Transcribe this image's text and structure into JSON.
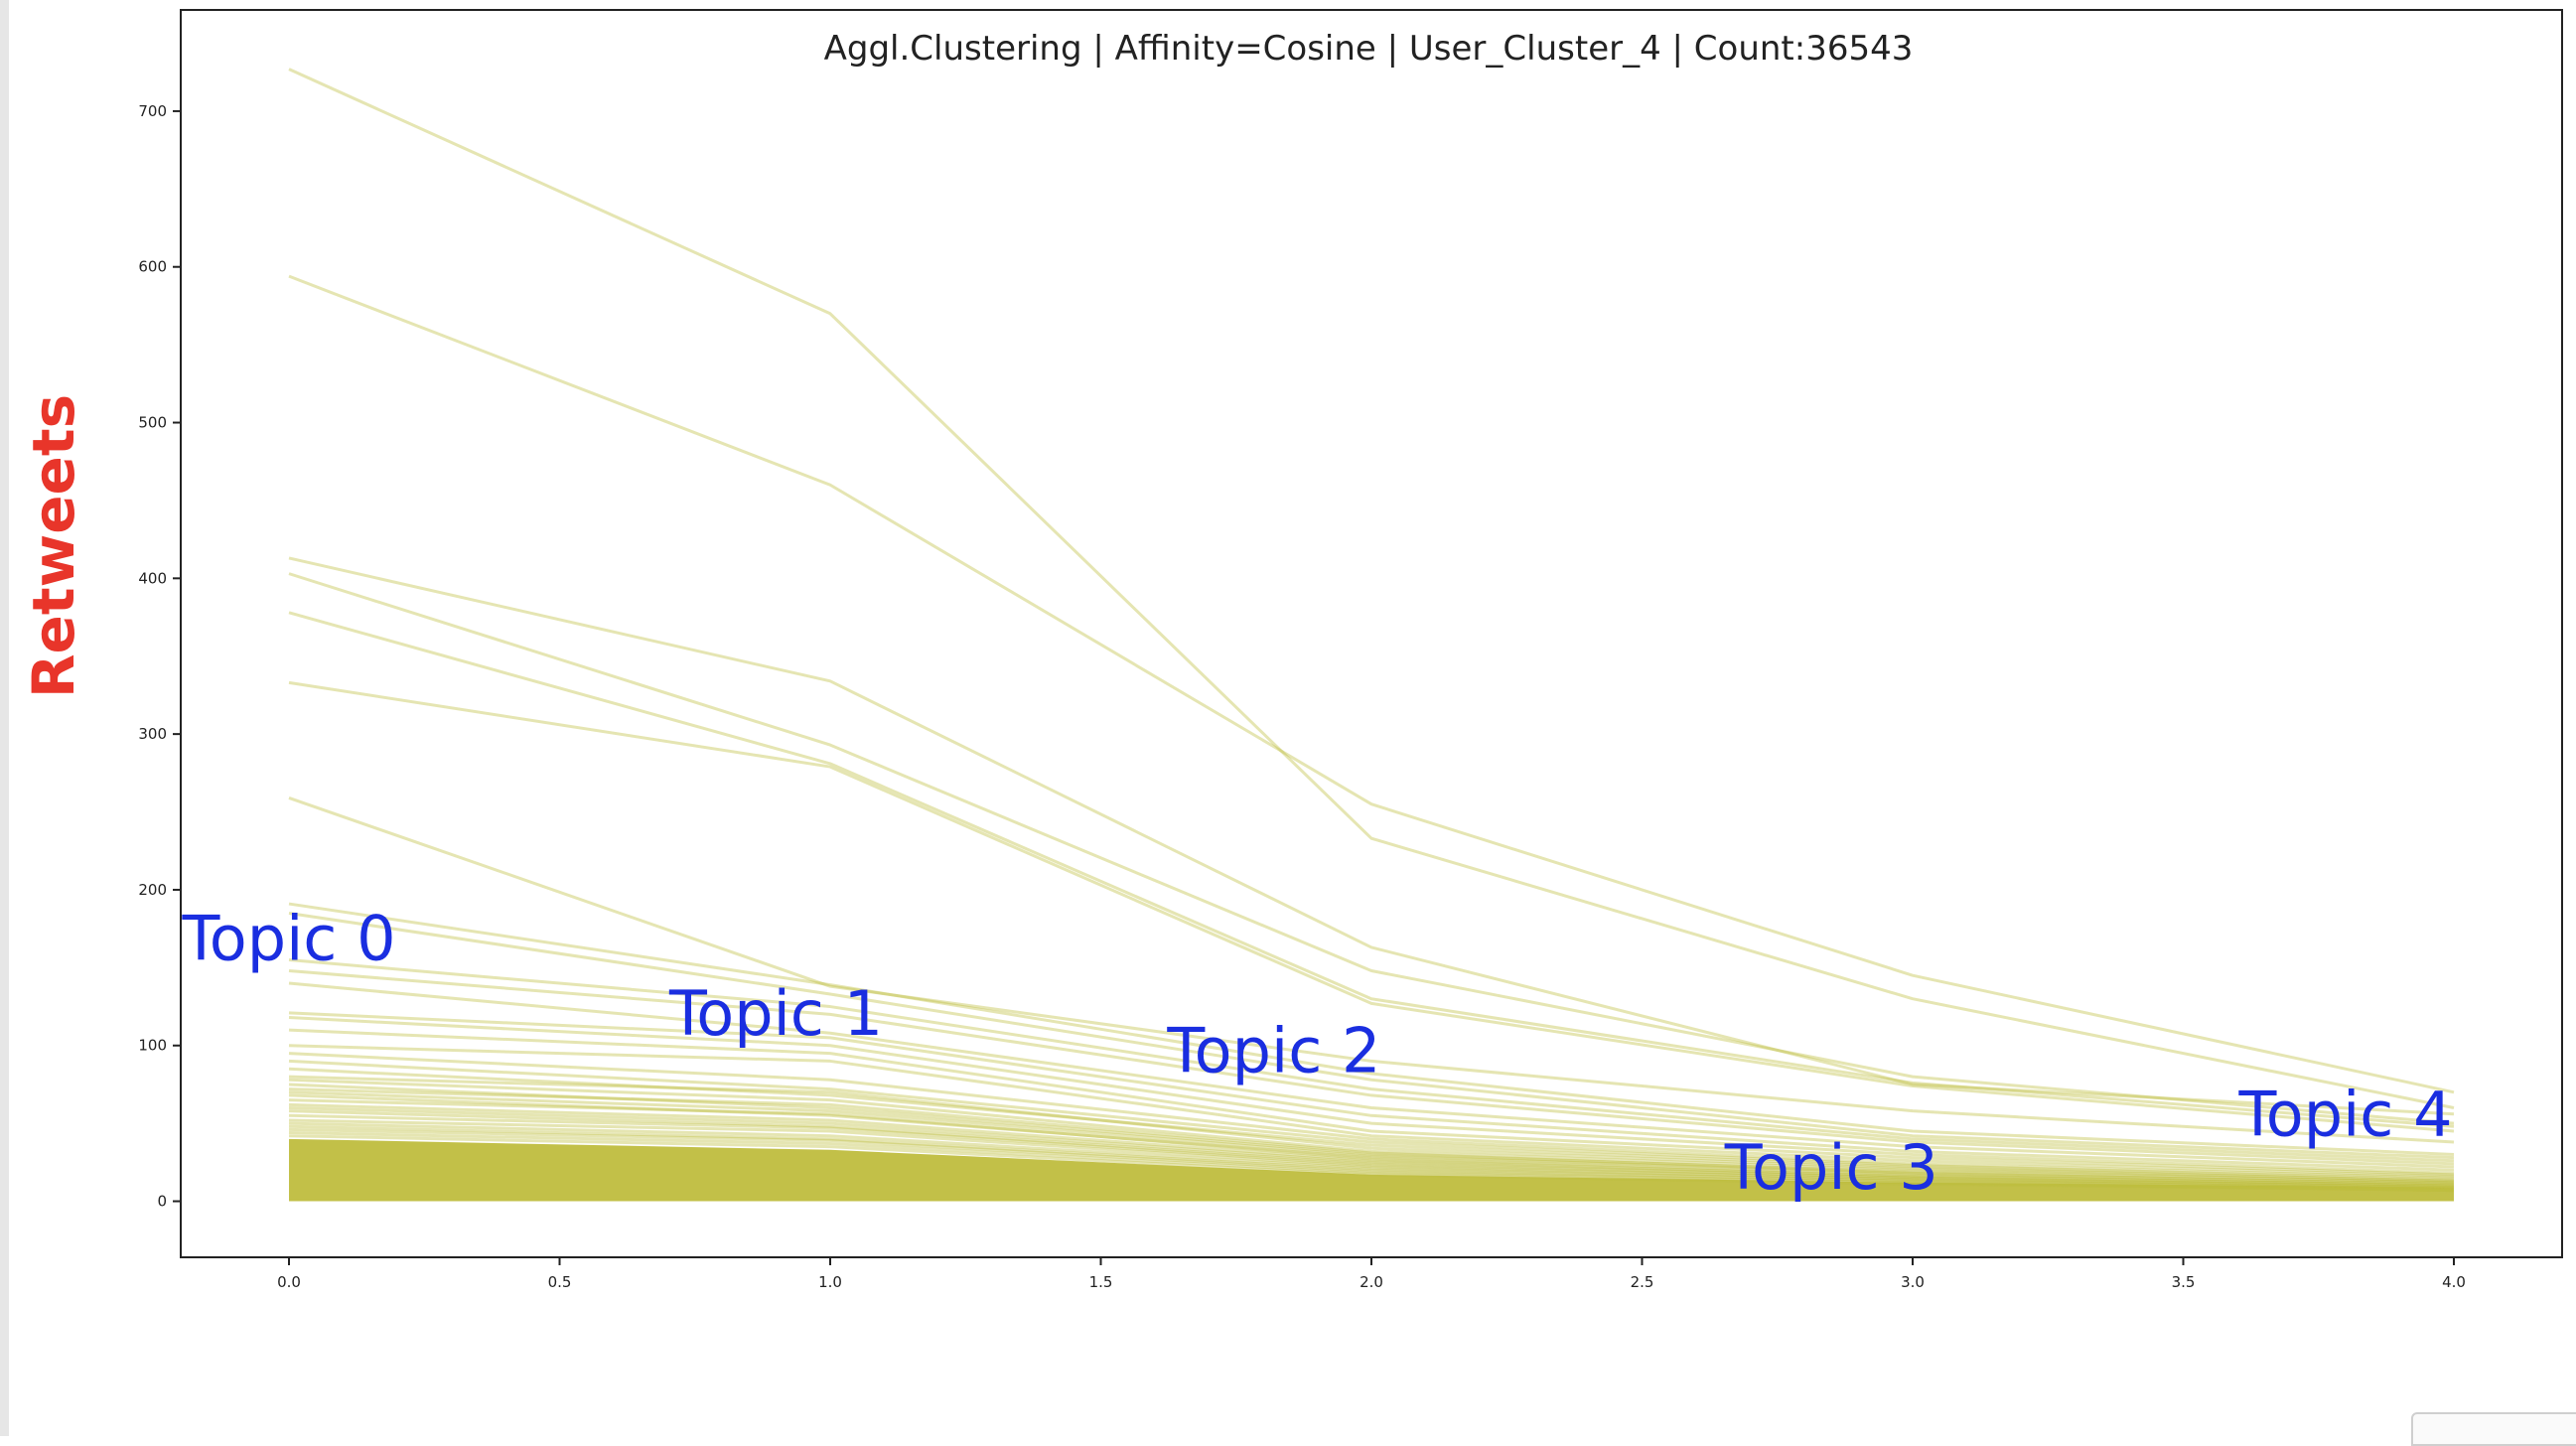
{
  "chart_data": {
    "type": "line",
    "title": "Aggl.Clustering | Affinity=Cosine | User_Cluster_4 | Count:36543",
    "ylabel": "Retweets",
    "xlabel": "",
    "xlim": [
      -0.2,
      4.2
    ],
    "ylim": [
      -36,
      765
    ],
    "x": [
      0,
      1,
      2,
      3,
      4
    ],
    "x_ticks": [
      "0.0",
      "0.5",
      "1.0",
      "1.5",
      "2.0",
      "2.5",
      "3.0",
      "3.5",
      "4.0"
    ],
    "y_ticks": [
      "0",
      "100",
      "200",
      "300",
      "400",
      "500",
      "600",
      "700"
    ],
    "grid": false,
    "legend": "none",
    "line_color": "#bfbd3e",
    "title_color": "#222222",
    "ylabel_color": "#e8352a",
    "annotation_color": "#1a2ee0",
    "annotations": [
      {
        "text": "Topic 0",
        "x": 0.0,
        "y": 155
      },
      {
        "text": "Topic 1",
        "x": 0.9,
        "y": 107
      },
      {
        "text": "Topic 2",
        "x": 1.82,
        "y": 83
      },
      {
        "text": "Topic 3",
        "x": 2.85,
        "y": 8
      },
      {
        "text": "Topic 4",
        "x": 3.8,
        "y": 42
      }
    ],
    "series": [
      {
        "values": [
          727,
          570,
          233,
          130,
          60
        ]
      },
      {
        "values": [
          594,
          460,
          255,
          145,
          70
        ]
      },
      {
        "values": [
          413,
          334,
          163,
          75,
          56
        ]
      },
      {
        "values": [
          403,
          293,
          148,
          80,
          50
        ]
      },
      {
        "values": [
          378,
          281,
          130,
          76,
          48
        ]
      },
      {
        "values": [
          333,
          279,
          127,
          74,
          45
        ]
      },
      {
        "values": [
          259,
          138,
          90,
          58,
          38
        ]
      },
      {
        "values": [
          191,
          139,
          82,
          45,
          30
        ]
      },
      {
        "values": [
          185,
          133,
          78,
          42,
          28
        ]
      },
      {
        "values": [
          155,
          125,
          72,
          40,
          26
        ]
      },
      {
        "values": [
          148,
          120,
          68,
          38,
          24
        ]
      },
      {
        "values": [
          140,
          108,
          60,
          35,
          22
        ]
      },
      {
        "values": [
          121,
          105,
          55,
          32,
          20
        ]
      },
      {
        "values": [
          118,
          100,
          50,
          30,
          18
        ]
      },
      {
        "values": [
          110,
          95,
          45,
          28,
          17
        ]
      },
      {
        "values": [
          100,
          90,
          42,
          26,
          16
        ]
      },
      {
        "values": [
          95,
          78,
          40,
          24,
          15
        ]
      },
      {
        "values": [
          90,
          72,
          38,
          23,
          14
        ]
      },
      {
        "values": [
          85,
          68,
          36,
          22,
          13
        ]
      },
      {
        "values": [
          80,
          70,
          34,
          21,
          13
        ]
      },
      {
        "values": [
          78,
          65,
          32,
          20,
          12
        ]
      },
      {
        "values": [
          75,
          60,
          30,
          19,
          12
        ]
      },
      {
        "values": [
          72,
          62,
          31,
          18,
          11
        ]
      },
      {
        "values": [
          70,
          58,
          29,
          18,
          11
        ]
      },
      {
        "values": [
          68,
          55,
          28,
          17,
          10
        ]
      },
      {
        "values": [
          65,
          56,
          27,
          16,
          10
        ]
      },
      {
        "values": [
          62,
          52,
          26,
          16,
          10
        ]
      },
      {
        "values": [
          60,
          50,
          25,
          15,
          9
        ]
      },
      {
        "values": [
          58,
          48,
          24,
          15,
          9
        ]
      },
      {
        "values": [
          55,
          47,
          23,
          14,
          9
        ]
      },
      {
        "values": [
          52,
          45,
          22,
          14,
          8
        ]
      },
      {
        "values": [
          50,
          42,
          21,
          13,
          8
        ]
      },
      {
        "values": [
          48,
          40,
          20,
          13,
          8
        ]
      },
      {
        "values": [
          46,
          39,
          19,
          12,
          7
        ]
      },
      {
        "values": [
          44,
          37,
          18,
          12,
          7
        ]
      },
      {
        "values": [
          42,
          35,
          17,
          11,
          7
        ]
      }
    ],
    "dense_band": {
      "upper": [
        40,
        33,
        17,
        12,
        9
      ],
      "lower": [
        0,
        0,
        0,
        0,
        0
      ]
    }
  }
}
